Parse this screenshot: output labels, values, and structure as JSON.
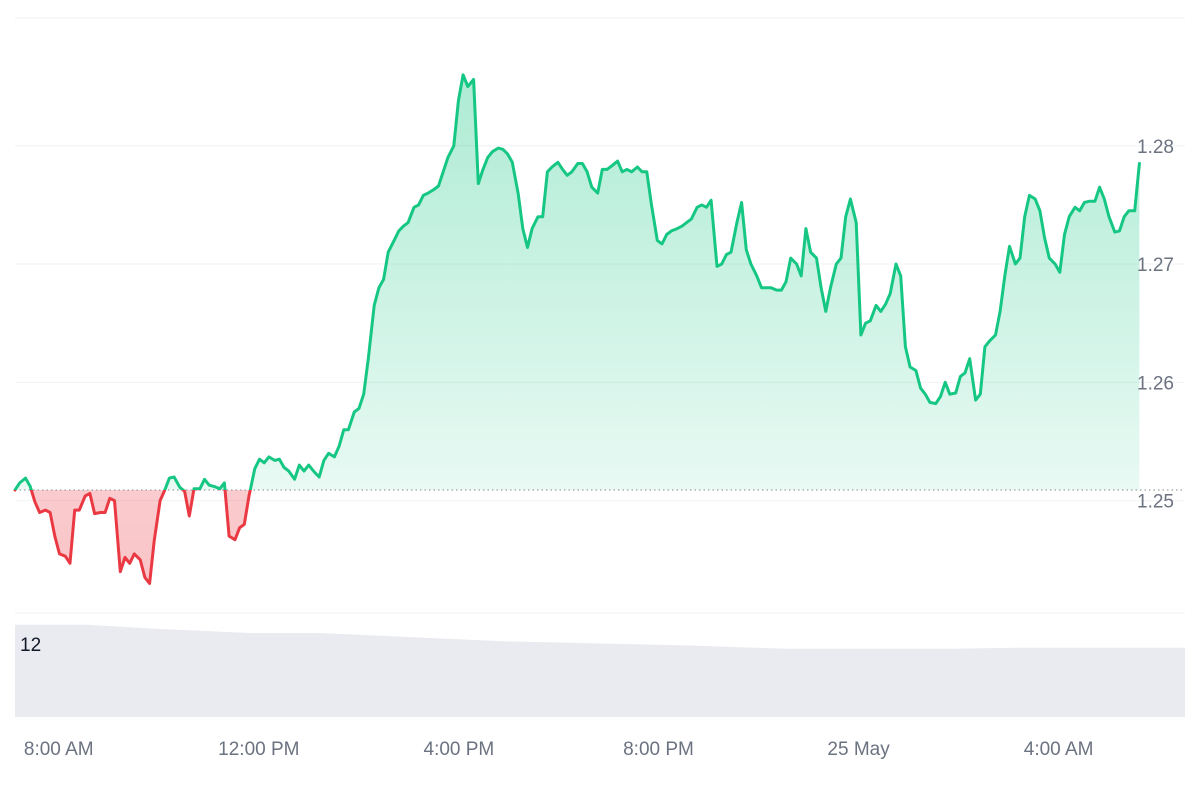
{
  "chart_data": {
    "type": "area",
    "baseline": 1.2509,
    "ylim": [
      1.2405,
      1.2908
    ],
    "grid": true,
    "y_ticks": [
      {
        "value": 1.25,
        "label": "1.25"
      },
      {
        "value": 1.26,
        "label": "1.26"
      },
      {
        "value": 1.27,
        "label": "1.27"
      },
      {
        "value": 1.28,
        "label": "1.28"
      }
    ],
    "x_ticks": [
      {
        "label": "8:00 AM",
        "pos": 0.0374
      },
      {
        "label": "12:00 PM",
        "pos": 0.2084
      },
      {
        "label": "4:00 PM",
        "pos": 0.3794
      },
      {
        "label": "8:00 PM",
        "pos": 0.55
      },
      {
        "label": "25 May",
        "pos": 0.721
      },
      {
        "label": "4:00 AM",
        "pos": 0.892
      }
    ],
    "colors": {
      "up_line": "#16c784",
      "down_line": "#ea3943",
      "up_fill": "#16c784",
      "down_fill": "#ea3943",
      "grid": "#f0f2f5",
      "baseline": "#9aa1a9",
      "volume": "#e9ebf0"
    },
    "series": [
      {
        "values": [
          [
            0.0,
            1.2509
          ],
          [
            0.004,
            1.2515
          ],
          [
            0.009,
            1.2519
          ],
          [
            0.013,
            1.2512
          ],
          [
            0.017,
            1.2499
          ],
          [
            0.021,
            1.249
          ],
          [
            0.026,
            1.2492
          ],
          [
            0.03,
            1.249
          ],
          [
            0.034,
            1.247
          ],
          [
            0.038,
            1.2455
          ],
          [
            0.043,
            1.2453
          ],
          [
            0.047,
            1.2447
          ],
          [
            0.051,
            1.2492
          ],
          [
            0.055,
            1.2492
          ],
          [
            0.06,
            1.2504
          ],
          [
            0.064,
            1.2506
          ],
          [
            0.068,
            1.2489
          ],
          [
            0.073,
            1.249
          ],
          [
            0.077,
            1.249
          ],
          [
            0.081,
            1.2502
          ],
          [
            0.085,
            1.25
          ],
          [
            0.09,
            1.244
          ],
          [
            0.094,
            1.2452
          ],
          [
            0.098,
            1.2447
          ],
          [
            0.102,
            1.2455
          ],
          [
            0.107,
            1.245
          ],
          [
            0.111,
            1.2435
          ],
          [
            0.115,
            1.243
          ],
          [
            0.119,
            1.2466
          ],
          [
            0.124,
            1.25
          ],
          [
            0.128,
            1.2509
          ],
          [
            0.132,
            1.2519
          ],
          [
            0.136,
            1.252
          ],
          [
            0.141,
            1.2511
          ],
          [
            0.145,
            1.2508
          ],
          [
            0.149,
            1.2487
          ],
          [
            0.153,
            1.251
          ],
          [
            0.158,
            1.251
          ],
          [
            0.162,
            1.2518
          ],
          [
            0.166,
            1.2513
          ],
          [
            0.17,
            1.2512
          ],
          [
            0.175,
            1.251
          ],
          [
            0.179,
            1.2515
          ],
          [
            0.183,
            1.247
          ],
          [
            0.188,
            1.2467
          ],
          [
            0.192,
            1.2477
          ],
          [
            0.196,
            1.248
          ],
          [
            0.2,
            1.2504
          ],
          [
            0.205,
            1.2527
          ],
          [
            0.209,
            1.2535
          ],
          [
            0.213,
            1.2532
          ],
          [
            0.217,
            1.2537
          ],
          [
            0.222,
            1.2534
          ],
          [
            0.226,
            1.2535
          ],
          [
            0.23,
            1.2528
          ],
          [
            0.234,
            1.2525
          ],
          [
            0.239,
            1.2518
          ],
          [
            0.243,
            1.253
          ],
          [
            0.247,
            1.2525
          ],
          [
            0.251,
            1.253
          ],
          [
            0.256,
            1.2524
          ],
          [
            0.26,
            1.252
          ],
          [
            0.264,
            1.2534
          ],
          [
            0.268,
            1.254
          ],
          [
            0.273,
            1.2537
          ],
          [
            0.277,
            1.2546
          ],
          [
            0.281,
            1.256
          ],
          [
            0.285,
            1.256
          ],
          [
            0.29,
            1.2575
          ],
          [
            0.294,
            1.2578
          ],
          [
            0.298,
            1.259
          ],
          [
            0.302,
            1.262
          ],
          [
            0.307,
            1.2665
          ],
          [
            0.311,
            1.268
          ],
          [
            0.315,
            1.2687
          ],
          [
            0.319,
            1.271
          ],
          [
            0.324,
            1.272
          ],
          [
            0.328,
            1.2728
          ],
          [
            0.332,
            1.2732
          ],
          [
            0.336,
            1.2735
          ],
          [
            0.341,
            1.2748
          ],
          [
            0.345,
            1.275
          ],
          [
            0.349,
            1.2758
          ],
          [
            0.353,
            1.276
          ],
          [
            0.358,
            1.2763
          ],
          [
            0.362,
            1.2766
          ],
          [
            0.366,
            1.2778
          ],
          [
            0.37,
            1.279
          ],
          [
            0.375,
            1.28
          ],
          [
            0.379,
            1.2838
          ],
          [
            0.383,
            1.286
          ],
          [
            0.387,
            1.285
          ],
          [
            0.392,
            1.2856
          ],
          [
            0.396,
            1.2768
          ],
          [
            0.4,
            1.278
          ],
          [
            0.404,
            1.279
          ],
          [
            0.408,
            1.2795
          ],
          [
            0.413,
            1.2798
          ],
          [
            0.417,
            1.2797
          ],
          [
            0.421,
            1.2793
          ],
          [
            0.425,
            1.2786
          ],
          [
            0.43,
            1.276
          ],
          [
            0.434,
            1.273
          ],
          [
            0.438,
            1.2714
          ],
          [
            0.442,
            1.273
          ],
          [
            0.447,
            1.274
          ],
          [
            0.451,
            1.274
          ],
          [
            0.455,
            1.2778
          ],
          [
            0.459,
            1.2782
          ],
          [
            0.464,
            1.2786
          ],
          [
            0.468,
            1.278
          ],
          [
            0.472,
            1.2775
          ],
          [
            0.476,
            1.2778
          ],
          [
            0.481,
            1.2785
          ],
          [
            0.485,
            1.2785
          ],
          [
            0.489,
            1.2778
          ],
          [
            0.493,
            1.2765
          ],
          [
            0.498,
            1.276
          ],
          [
            0.502,
            1.278
          ],
          [
            0.506,
            1.278
          ],
          [
            0.51,
            1.2783
          ],
          [
            0.515,
            1.2787
          ],
          [
            0.519,
            1.2778
          ],
          [
            0.523,
            1.278
          ],
          [
            0.527,
            1.2778
          ],
          [
            0.532,
            1.2782
          ],
          [
            0.536,
            1.2778
          ],
          [
            0.54,
            1.2778
          ],
          [
            0.544,
            1.275
          ],
          [
            0.549,
            1.272
          ],
          [
            0.553,
            1.2717
          ],
          [
            0.557,
            1.2725
          ],
          [
            0.561,
            1.2728
          ],
          [
            0.566,
            1.273
          ],
          [
            0.57,
            1.2732
          ],
          [
            0.574,
            1.2735
          ],
          [
            0.578,
            1.2738
          ],
          [
            0.583,
            1.2748
          ],
          [
            0.587,
            1.275
          ],
          [
            0.591,
            1.2748
          ],
          [
            0.595,
            1.2754
          ],
          [
            0.6,
            1.2698
          ],
          [
            0.604,
            1.27
          ],
          [
            0.608,
            1.2708
          ],
          [
            0.612,
            1.271
          ],
          [
            0.617,
            1.2735
          ],
          [
            0.621,
            1.2752
          ],
          [
            0.625,
            1.2712
          ],
          [
            0.629,
            1.27
          ],
          [
            0.634,
            1.269
          ],
          [
            0.638,
            1.268
          ],
          [
            0.642,
            1.268
          ],
          [
            0.646,
            1.268
          ],
          [
            0.651,
            1.2678
          ],
          [
            0.655,
            1.2678
          ],
          [
            0.659,
            1.2685
          ],
          [
            0.663,
            1.2705
          ],
          [
            0.668,
            1.27
          ],
          [
            0.672,
            1.269
          ],
          [
            0.676,
            1.273
          ],
          [
            0.68,
            1.271
          ],
          [
            0.685,
            1.2705
          ],
          [
            0.689,
            1.268
          ],
          [
            0.693,
            1.266
          ],
          [
            0.697,
            1.268
          ],
          [
            0.702,
            1.27
          ],
          [
            0.706,
            1.2705
          ],
          [
            0.71,
            1.274
          ],
          [
            0.714,
            1.2755
          ],
          [
            0.719,
            1.2735
          ],
          [
            0.723,
            1.264
          ],
          [
            0.727,
            1.265
          ],
          [
            0.731,
            1.2652
          ],
          [
            0.736,
            1.2665
          ],
          [
            0.74,
            1.266
          ],
          [
            0.744,
            1.2666
          ],
          [
            0.748,
            1.2675
          ],
          [
            0.753,
            1.27
          ],
          [
            0.757,
            1.269
          ],
          [
            0.761,
            1.263
          ],
          [
            0.765,
            1.2613
          ],
          [
            0.77,
            1.261
          ],
          [
            0.774,
            1.2595
          ],
          [
            0.778,
            1.259
          ],
          [
            0.782,
            1.2583
          ],
          [
            0.787,
            1.2582
          ],
          [
            0.791,
            1.2588
          ],
          [
            0.795,
            1.26
          ],
          [
            0.799,
            1.259
          ],
          [
            0.804,
            1.2591
          ],
          [
            0.808,
            1.2605
          ],
          [
            0.812,
            1.2608
          ],
          [
            0.816,
            1.262
          ],
          [
            0.821,
            1.2585
          ],
          [
            0.825,
            1.259
          ],
          [
            0.829,
            1.263
          ],
          [
            0.833,
            1.2635
          ],
          [
            0.838,
            1.264
          ],
          [
            0.842,
            1.266
          ],
          [
            0.846,
            1.269
          ],
          [
            0.85,
            1.2715
          ],
          [
            0.855,
            1.27
          ],
          [
            0.859,
            1.2705
          ],
          [
            0.863,
            1.274
          ],
          [
            0.867,
            1.2758
          ],
          [
            0.872,
            1.2755
          ],
          [
            0.876,
            1.2745
          ],
          [
            0.88,
            1.2722
          ],
          [
            0.884,
            1.2705
          ],
          [
            0.889,
            1.27
          ],
          [
            0.893,
            1.2693
          ],
          [
            0.897,
            1.2725
          ],
          [
            0.901,
            1.274
          ],
          [
            0.906,
            1.2748
          ],
          [
            0.91,
            1.2745
          ],
          [
            0.914,
            1.2752
          ],
          [
            0.918,
            1.2753
          ],
          [
            0.923,
            1.2753
          ],
          [
            0.927,
            1.2765
          ],
          [
            0.931,
            1.2755
          ],
          [
            0.935,
            1.274
          ],
          [
            0.94,
            1.2727
          ],
          [
            0.944,
            1.2728
          ],
          [
            0.948,
            1.274
          ],
          [
            0.952,
            1.2745
          ],
          [
            0.957,
            1.2745
          ],
          [
            0.961,
            1.2785
          ]
        ]
      }
    ],
    "volume": {
      "label": "12",
      "values": [
        [
          0.0,
          0.88
        ],
        [
          0.06,
          0.88
        ],
        [
          0.12,
          0.84
        ],
        [
          0.2,
          0.8
        ],
        [
          0.26,
          0.8
        ],
        [
          0.34,
          0.76
        ],
        [
          0.42,
          0.72
        ],
        [
          0.5,
          0.7
        ],
        [
          0.58,
          0.68
        ],
        [
          0.66,
          0.65
        ],
        [
          0.74,
          0.65
        ],
        [
          0.8,
          0.65
        ],
        [
          0.86,
          0.66
        ],
        [
          0.92,
          0.66
        ],
        [
          0.961,
          0.66
        ]
      ]
    }
  }
}
